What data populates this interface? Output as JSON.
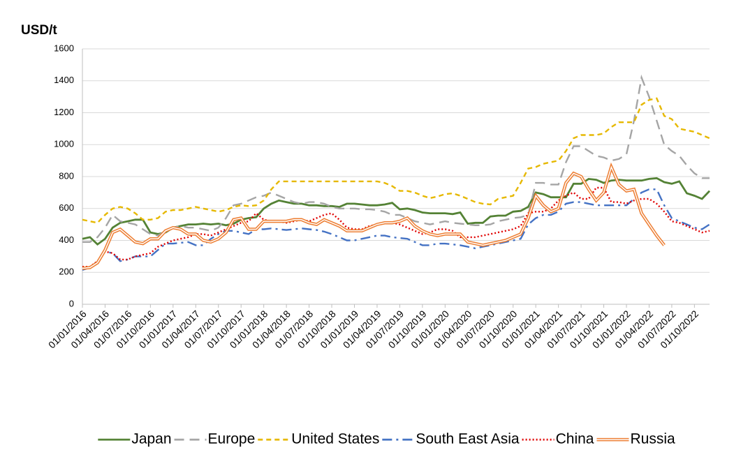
{
  "chart_data": {
    "type": "line",
    "y_label": "USD/t",
    "categories": [
      "01/01/2016",
      null,
      null,
      "01/04/2016",
      null,
      null,
      "01/07/2016",
      null,
      null,
      "01/10/2016",
      null,
      null,
      "01/01/2017",
      null,
      null,
      "01/04/2017",
      null,
      null,
      "01/07/2017",
      null,
      null,
      "01/10/2017",
      null,
      null,
      "01/01/2018",
      null,
      null,
      "01/04/2018",
      null,
      null,
      "01/07/2018",
      null,
      null,
      "01/10/2018",
      null,
      null,
      "01/01/2019",
      null,
      null,
      "01/04/2019",
      null,
      null,
      "01/07/2019",
      null,
      null,
      "01/10/2019",
      null,
      null,
      "01/01/2020",
      null,
      null,
      "01/04/2020",
      null,
      null,
      "01/07/2020",
      null,
      null,
      "01/10/2020",
      null,
      null,
      "01/01/2021",
      null,
      null,
      "01/04/2021",
      null,
      null,
      "01/07/2021",
      null,
      null,
      "01/10/2021",
      null,
      null,
      "01/01/2022",
      null,
      null,
      "01/04/2022",
      null,
      null,
      "01/07/2022",
      null,
      null,
      "01/10/2022",
      null,
      null
    ],
    "series": [
      {
        "name": "Japan",
        "color": "#548235",
        "style": "solid",
        "values": [
          410,
          420,
          375,
          410,
          480,
          510,
          520,
          530,
          530,
          450,
          440,
          450,
          480,
          490,
          500,
          500,
          505,
          500,
          505,
          495,
          505,
          530,
          540,
          545,
          600,
          630,
          650,
          640,
          630,
          630,
          620,
          620,
          615,
          615,
          610,
          630,
          630,
          625,
          620,
          620,
          625,
          635,
          595,
          600,
          590,
          575,
          570,
          570,
          570,
          565,
          575,
          505,
          510,
          510,
          550,
          555,
          555,
          580,
          585,
          610,
          700,
          690,
          670,
          670,
          670,
          755,
          755,
          785,
          780,
          760,
          775,
          780,
          775,
          775,
          775,
          785,
          790,
          765,
          755,
          770,
          695,
          680,
          660,
          710
        ]
      },
      {
        "name": "Europe",
        "color": "#a5a5a5",
        "style": "dashed",
        "values": [
          390,
          390,
          420,
          480,
          560,
          520,
          510,
          500,
          470,
          440,
          430,
          460,
          480,
          490,
          480,
          480,
          470,
          460,
          480,
          540,
          620,
          630,
          650,
          670,
          680,
          700,
          680,
          660,
          640,
          630,
          640,
          640,
          630,
          610,
          600,
          600,
          600,
          595,
          595,
          590,
          580,
          560,
          560,
          540,
          520,
          510,
          500,
          510,
          520,
          510,
          505,
          500,
          495,
          495,
          500,
          520,
          530,
          540,
          545,
          560,
          760,
          760,
          750,
          750,
          890,
          990,
          990,
          960,
          930,
          920,
          900,
          910,
          940,
          1150,
          1420,
          1300,
          1150,
          1000,
          960,
          930,
          870,
          820,
          790,
          790
        ]
      },
      {
        "name": "United States",
        "color": "#e6b800",
        "style": "short-dashed",
        "values": [
          530,
          520,
          510,
          560,
          600,
          610,
          600,
          570,
          530,
          530,
          540,
          580,
          590,
          590,
          600,
          610,
          600,
          590,
          580,
          590,
          610,
          620,
          615,
          620,
          650,
          720,
          770,
          770,
          770,
          770,
          770,
          770,
          770,
          770,
          770,
          770,
          770,
          770,
          770,
          770,
          760,
          740,
          710,
          710,
          700,
          680,
          665,
          675,
          690,
          695,
          680,
          660,
          640,
          630,
          625,
          660,
          670,
          680,
          760,
          850,
          860,
          880,
          890,
          900,
          960,
          1040,
          1060,
          1060,
          1060,
          1070,
          1110,
          1140,
          1140,
          1140,
          1250,
          1280,
          1290,
          1180,
          1160,
          1100,
          1090,
          1080,
          1060,
          1040
        ]
      },
      {
        "name": "South East Asia",
        "color": "#4472c4",
        "style": "dash-dot",
        "values": [
          215,
          230,
          270,
          330,
          320,
          270,
          280,
          300,
          300,
          300,
          340,
          380,
          380,
          385,
          390,
          370,
          370,
          410,
          440,
          460,
          460,
          450,
          440,
          470,
          470,
          475,
          470,
          465,
          470,
          475,
          470,
          465,
          455,
          440,
          420,
          400,
          400,
          410,
          420,
          430,
          430,
          420,
          415,
          410,
          390,
          370,
          370,
          380,
          380,
          375,
          370,
          360,
          350,
          360,
          370,
          380,
          390,
          400,
          410,
          500,
          540,
          560,
          560,
          580,
          630,
          640,
          640,
          630,
          620,
          620,
          620,
          620,
          620,
          660,
          700,
          720,
          720,
          620,
          540,
          520,
          500,
          480,
          470,
          500
        ]
      },
      {
        "name": "China",
        "color": "#e00000",
        "style": "dotted",
        "values": [
          235,
          235,
          270,
          330,
          320,
          280,
          280,
          300,
          310,
          320,
          360,
          380,
          400,
          410,
          420,
          440,
          440,
          430,
          450,
          470,
          490,
          510,
          520,
          570,
          530,
          520,
          520,
          510,
          520,
          530,
          520,
          540,
          560,
          570,
          530,
          480,
          470,
          470,
          490,
          500,
          510,
          510,
          500,
          480,
          460,
          440,
          450,
          470,
          470,
          460,
          420,
          420,
          420,
          430,
          440,
          450,
          460,
          470,
          490,
          570,
          580,
          580,
          600,
          650,
          680,
          700,
          660,
          660,
          730,
          730,
          640,
          640,
          630,
          650,
          660,
          660,
          630,
          580,
          520,
          510,
          490,
          470,
          450,
          460
        ]
      },
      {
        "name": "Russia",
        "color": "#ed7d31",
        "style": "double",
        "values": [
          225,
          230,
          260,
          340,
          450,
          470,
          430,
          390,
          380,
          410,
          410,
          460,
          480,
          470,
          440,
          440,
          400,
          390,
          410,
          450,
          530,
          540,
          470,
          470,
          520,
          520,
          520,
          520,
          530,
          530,
          510,
          500,
          530,
          510,
          490,
          460,
          460,
          460,
          480,
          500,
          510,
          510,
          520,
          540,
          490,
          460,
          440,
          430,
          440,
          440,
          440,
          390,
          380,
          370,
          380,
          390,
          400,
          420,
          440,
          540,
          680,
          620,
          580,
          600,
          760,
          820,
          800,
          720,
          650,
          700,
          860,
          750,
          710,
          720,
          570,
          500,
          430,
          370,
          null,
          null,
          null,
          null,
          null,
          null
        ]
      }
    ],
    "ylim": [
      0,
      1600
    ],
    "yticks": [
      0,
      200,
      400,
      600,
      800,
      1000,
      1200,
      1400,
      1600
    ],
    "grid": true,
    "legend": "bottom"
  }
}
